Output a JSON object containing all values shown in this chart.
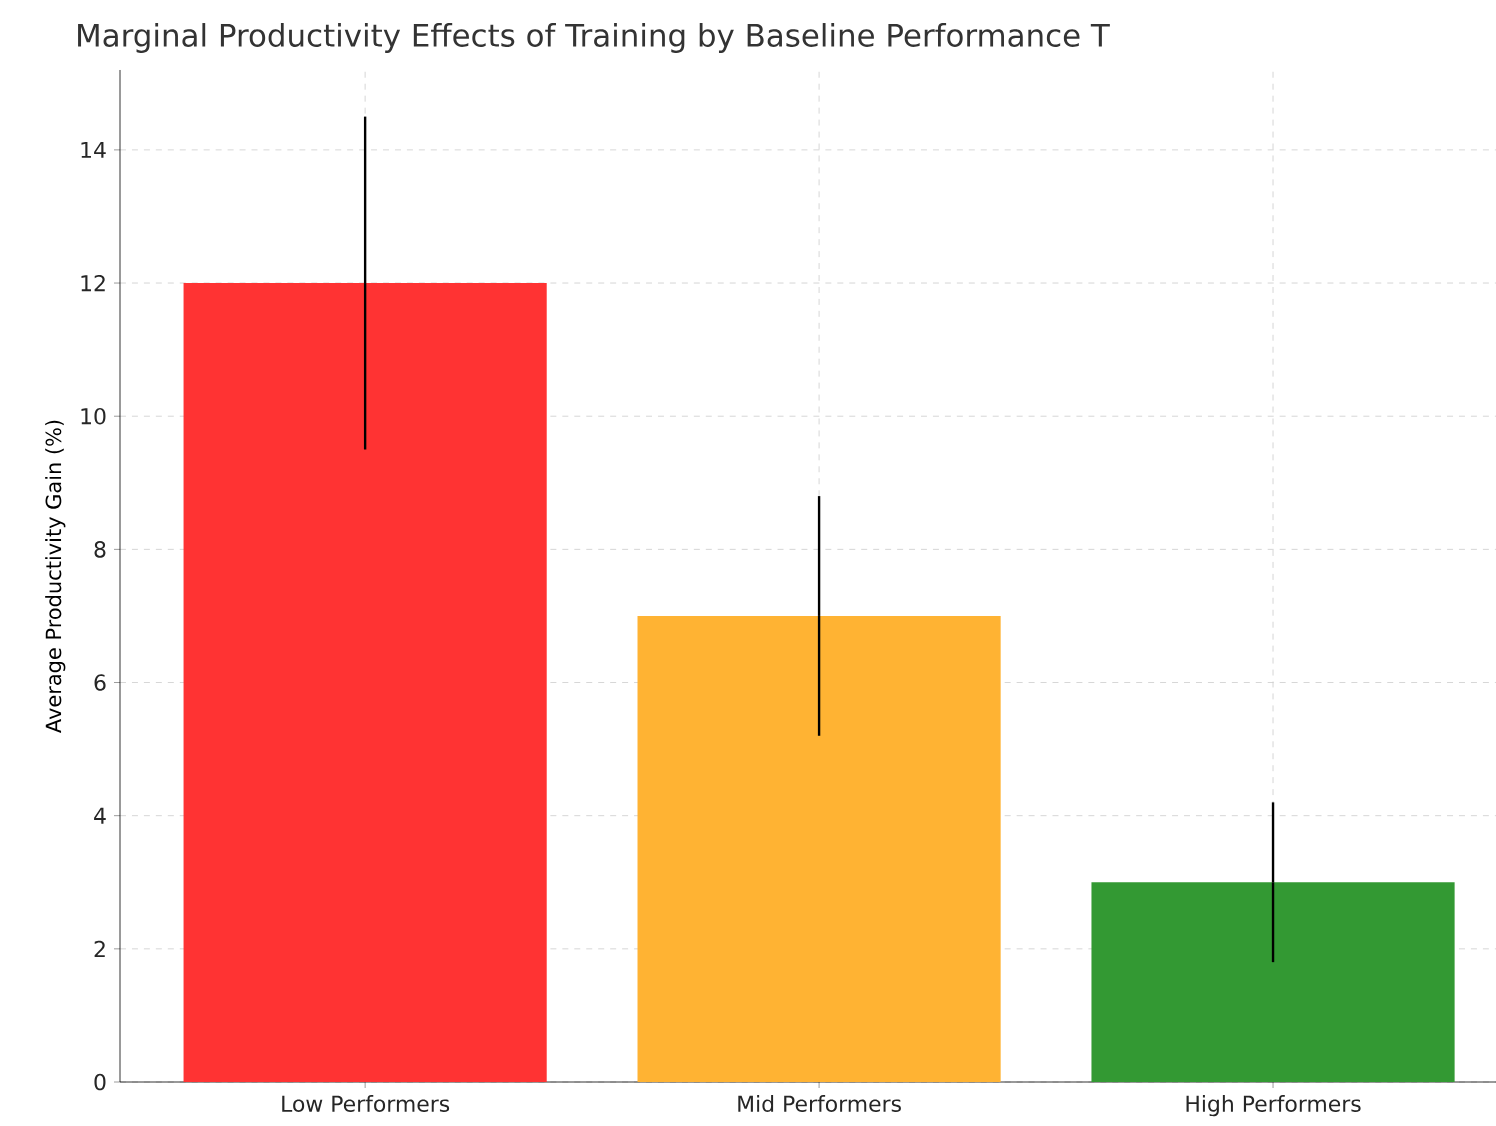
{
  "chart_data": {
    "type": "bar",
    "title": "Marginal Productivity Effects of Training by Baseline Performance T",
    "ylabel": "Average Productivity Gain (%)",
    "categories": [
      "Low Performers",
      "Mid Performers",
      "High Performers"
    ],
    "values": [
      12,
      7,
      3
    ],
    "colors": [
      "#ff3333",
      "#ffb333",
      "#339933"
    ],
    "errors": [
      2.5,
      1.8,
      1.2
    ],
    "ylim": [
      0,
      15.2
    ],
    "yticks": [
      0,
      2,
      4,
      6,
      8,
      10,
      12,
      14
    ],
    "grid": true
  }
}
